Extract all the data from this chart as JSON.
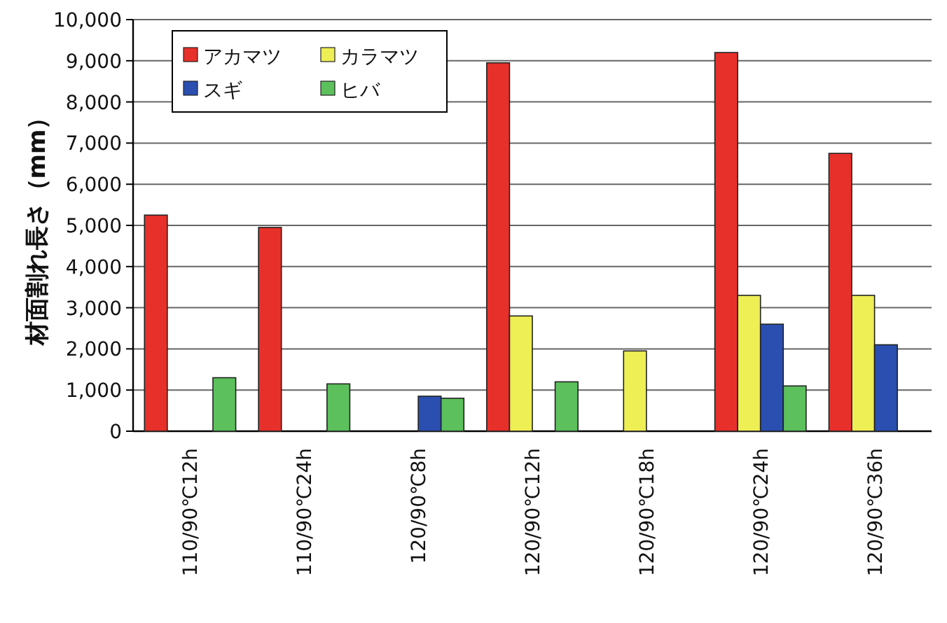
{
  "chart_data": {
    "type": "bar",
    "ylabel": "材面割れ長さ（mm）",
    "categories": [
      "110/90℃12h",
      "110/90℃24h",
      "120/90℃8h",
      "120/90℃12h",
      "120/90℃18h",
      "120/90℃24h",
      "120/90℃36h"
    ],
    "series": [
      {
        "name": "アカマツ",
        "color": "#e8302a",
        "values": [
          5250,
          4950,
          null,
          8950,
          null,
          9200,
          6750
        ]
      },
      {
        "name": "カラマツ",
        "color": "#eeee55",
        "values": [
          null,
          null,
          null,
          2800,
          1950,
          3300,
          3300
        ]
      },
      {
        "name": "スギ",
        "color": "#2a4fb0",
        "values": [
          null,
          null,
          850,
          null,
          null,
          2600,
          2100
        ]
      },
      {
        "name": "ヒバ",
        "color": "#5cc05c",
        "values": [
          1300,
          1150,
          800,
          1200,
          null,
          1100,
          null
        ]
      }
    ],
    "ylim": [
      0,
      10000
    ],
    "yticks": [
      0,
      {
        "value": 1000,
        "label": "1,000"
      },
      {
        "value": 2000,
        "label": "2,000"
      },
      {
        "value": 3000,
        "label": "3,000"
      },
      {
        "value": 4000,
        "label": "4,000"
      },
      {
        "value": 5000,
        "label": "5,000"
      },
      {
        "value": 6000,
        "label": "6,000"
      },
      {
        "value": 7000,
        "label": "7,000"
      },
      {
        "value": 8000,
        "label": "8,000"
      },
      {
        "value": 9000,
        "label": "9,000"
      },
      {
        "value": 10000,
        "label": "10,000"
      }
    ],
    "grid": "y",
    "legend": "top left"
  }
}
